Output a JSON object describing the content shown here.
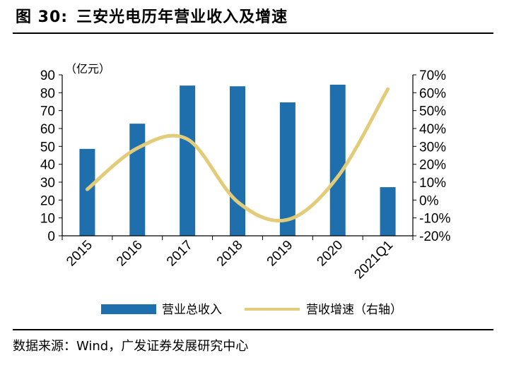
{
  "figure": {
    "number": "图 30:",
    "title": "三安光电历年营业收入及增速",
    "source": "数据来源：Wind，广发证券发展研究中心"
  },
  "chart_data": {
    "type": "bar",
    "categories": [
      "2015",
      "2016",
      "2017",
      "2018",
      "2019",
      "2020",
      "2021Q1"
    ],
    "unit_label": "（亿元）",
    "y_left": {
      "min": 0,
      "max": 90,
      "step": 10,
      "ticks": [
        "0",
        "10",
        "20",
        "30",
        "40",
        "50",
        "60",
        "70",
        "80",
        "90"
      ]
    },
    "y_right": {
      "min": -20,
      "max": 70,
      "step": 10,
      "ticks": [
        "-20%",
        "-10%",
        "0%",
        "10%",
        "20%",
        "30%",
        "40%",
        "50%",
        "60%",
        "70%"
      ]
    },
    "series": [
      {
        "name": "营业总收入",
        "type": "bar",
        "axis": "left",
        "color": "#1f6fad",
        "values": [
          48.6,
          62.7,
          84.0,
          83.6,
          74.6,
          84.5,
          27.2
        ]
      },
      {
        "name": "营收增速（右轴）",
        "type": "line",
        "axis": "right",
        "color": "#e3cc79",
        "values": [
          6,
          29,
          34,
          -1,
          -11,
          13,
          62
        ]
      }
    ],
    "legend_position": "bottom",
    "grid": false
  }
}
